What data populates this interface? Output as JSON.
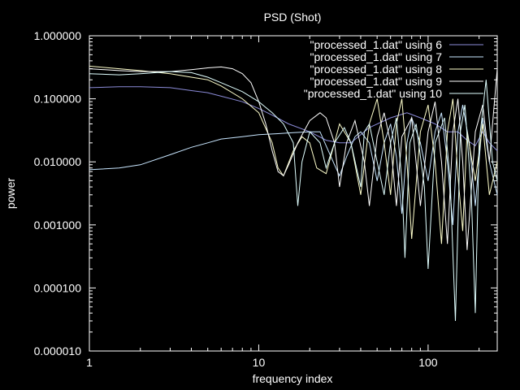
{
  "chart_data": {
    "type": "line",
    "title": "PSD (Shot)",
    "xlabel": "frequency index",
    "ylabel": "power",
    "x_scale": "log",
    "y_scale": "log",
    "xlim": [
      1,
      256
    ],
    "ylim": [
      1e-05,
      1
    ],
    "x_ticks": [
      {
        "value": 1,
        "label": "1"
      },
      {
        "value": 10,
        "label": "10"
      },
      {
        "value": 100,
        "label": "100"
      }
    ],
    "y_ticks": [
      {
        "value": 1e-05,
        "label": "0.000010"
      },
      {
        "value": 0.0001,
        "label": "0.000100"
      },
      {
        "value": 0.001,
        "label": "0.001000"
      },
      {
        "value": 0.01,
        "label": "0.010000"
      },
      {
        "value": 0.1,
        "label": "0.100000"
      },
      {
        "value": 1,
        "label": "1.000000"
      }
    ],
    "legend_position": "top-right",
    "series": [
      {
        "name": "\"processed_1.dat\" using 6",
        "color": "#8b8bd8",
        "points": [
          [
            1,
            0.15
          ],
          [
            1.5,
            0.155
          ],
          [
            2,
            0.155
          ],
          [
            3,
            0.15
          ],
          [
            4,
            0.135
          ],
          [
            5,
            0.125
          ],
          [
            6,
            0.11
          ],
          [
            8,
            0.09
          ],
          [
            10,
            0.07
          ],
          [
            12,
            0.055
          ],
          [
            15,
            0.04
          ],
          [
            20,
            0.03
          ],
          [
            25,
            0.022
          ],
          [
            30,
            0.02
          ],
          [
            35,
            0.02
          ],
          [
            45,
            0.035
          ],
          [
            60,
            0.05
          ],
          [
            75,
            0.06
          ],
          [
            90,
            0.05
          ],
          [
            110,
            0.04
          ],
          [
            130,
            0.03
          ],
          [
            150,
            0.03
          ],
          [
            170,
            0.022
          ],
          [
            190,
            0.018
          ],
          [
            210,
            0.03
          ],
          [
            230,
            0.02
          ],
          [
            256,
            0.015
          ]
        ]
      },
      {
        "name": "\"processed_1.dat\" using 7",
        "color": "#c8e6ff",
        "points": [
          [
            1,
            0.0075
          ],
          [
            1.5,
            0.008
          ],
          [
            2,
            0.009
          ],
          [
            3,
            0.013
          ],
          [
            4,
            0.017
          ],
          [
            5,
            0.02
          ],
          [
            6,
            0.023
          ],
          [
            8,
            0.025
          ],
          [
            10,
            0.027
          ],
          [
            13,
            0.028
          ],
          [
            16,
            0.029
          ],
          [
            20,
            0.03
          ],
          [
            23,
            0.03
          ],
          [
            25,
            0.018
          ],
          [
            28,
            0.009
          ],
          [
            30,
            0.006
          ],
          [
            33,
            0.012
          ],
          [
            37,
            0.025
          ],
          [
            40,
            0.03
          ],
          [
            45,
            0.02
          ],
          [
            50,
            0.005
          ],
          [
            55,
            0.02
          ],
          [
            60,
            0.04
          ],
          [
            65,
            0.012
          ],
          [
            70,
            0.0015
          ],
          [
            75,
            0.02
          ],
          [
            80,
            0.05
          ],
          [
            90,
            0.02
          ],
          [
            100,
            0.005
          ],
          [
            110,
            0.03
          ],
          [
            120,
            0.06
          ],
          [
            130,
            0.01
          ],
          [
            140,
            0.001
          ],
          [
            150,
            0.03
          ],
          [
            160,
            0.08
          ],
          [
            175,
            0.02
          ],
          [
            190,
            0.002
          ],
          [
            210,
            0.05
          ],
          [
            230,
            0.01
          ],
          [
            256,
            0.003
          ]
        ]
      },
      {
        "name": "\"processed_1.dat\" using 8",
        "color": "#ffffcc",
        "points": [
          [
            1,
            0.33
          ],
          [
            1.5,
            0.3
          ],
          [
            2,
            0.28
          ],
          [
            3,
            0.25
          ],
          [
            4,
            0.22
          ],
          [
            5,
            0.2
          ],
          [
            6,
            0.16
          ],
          [
            8,
            0.1
          ],
          [
            10,
            0.06
          ],
          [
            12,
            0.02
          ],
          [
            13,
            0.008
          ],
          [
            14,
            0.006
          ],
          [
            16,
            0.015
          ],
          [
            18,
            0.025
          ],
          [
            20,
            0.02
          ],
          [
            22,
            0.008
          ],
          [
            25,
            0.0065
          ],
          [
            28,
            0.02
          ],
          [
            30,
            0.04
          ],
          [
            35,
            0.02
          ],
          [
            40,
            0.003
          ],
          [
            45,
            0.04
          ],
          [
            50,
            0.1
          ],
          [
            55,
            0.02
          ],
          [
            60,
            0.003
          ],
          [
            65,
            0.04
          ],
          [
            70,
            0.1
          ],
          [
            75,
            0.01
          ],
          [
            80,
            0.0006
          ],
          [
            90,
            0.03
          ],
          [
            100,
            0.08
          ],
          [
            110,
            0.01
          ],
          [
            120,
            0.0005
          ],
          [
            130,
            0.03
          ],
          [
            140,
            0.1
          ],
          [
            150,
            0.006
          ],
          [
            160,
            0.0008
          ],
          [
            170,
            0.03
          ],
          [
            190,
            0.005
          ],
          [
            210,
            0.04
          ],
          [
            230,
            0.003
          ],
          [
            256,
            0.01
          ]
        ]
      },
      {
        "name": "\"processed_1.dat\" using 9",
        "color": "#ffffff",
        "points": [
          [
            1,
            0.3
          ],
          [
            1.5,
            0.28
          ],
          [
            2,
            0.27
          ],
          [
            3,
            0.27
          ],
          [
            4,
            0.29
          ],
          [
            5,
            0.31
          ],
          [
            6,
            0.32
          ],
          [
            7,
            0.3
          ],
          [
            8,
            0.25
          ],
          [
            9,
            0.18
          ],
          [
            10,
            0.09
          ],
          [
            11,
            0.04
          ],
          [
            12,
            0.015
          ],
          [
            13,
            0.007
          ],
          [
            14,
            0.006
          ],
          [
            15,
            0.009
          ],
          [
            17,
            0.02
          ],
          [
            20,
            0.045
          ],
          [
            23,
            0.06
          ],
          [
            25,
            0.05
          ],
          [
            28,
            0.02
          ],
          [
            30,
            0.004
          ],
          [
            33,
            0.02
          ],
          [
            37,
            0.045
          ],
          [
            42,
            0.01
          ],
          [
            45,
            0.002
          ],
          [
            50,
            0.025
          ],
          [
            55,
            0.06
          ],
          [
            60,
            0.02
          ],
          [
            65,
            0.002
          ],
          [
            70,
            0.025
          ],
          [
            80,
            0.05
          ],
          [
            90,
            0.002
          ],
          [
            100,
            0.03
          ],
          [
            110,
            0.09
          ],
          [
            120,
            0.01
          ],
          [
            130,
            0.0005
          ],
          [
            140,
            0.03
          ],
          [
            150,
            0.1
          ],
          [
            160,
            0.01
          ],
          [
            170,
            0.0004
          ],
          [
            190,
            0.03
          ],
          [
            210,
            0.08
          ],
          [
            230,
            0.01
          ],
          [
            256,
            0.3
          ]
        ]
      },
      {
        "name": "\"processed_1.dat\" using 10",
        "color": "#e0ffff",
        "points": [
          [
            1,
            0.25
          ],
          [
            1.5,
            0.24
          ],
          [
            2,
            0.25
          ],
          [
            3,
            0.27
          ],
          [
            4,
            0.26
          ],
          [
            5,
            0.22
          ],
          [
            6,
            0.18
          ],
          [
            8,
            0.13
          ],
          [
            10,
            0.09
          ],
          [
            12,
            0.06
          ],
          [
            14,
            0.04
          ],
          [
            16,
            0.02
          ],
          [
            17,
            0.002
          ],
          [
            18,
            0.01
          ],
          [
            20,
            0.03
          ],
          [
            23,
            0.02
          ],
          [
            25,
            0.008
          ],
          [
            28,
            0.02
          ],
          [
            32,
            0.035
          ],
          [
            35,
            0.02
          ],
          [
            40,
            0.004
          ],
          [
            42,
            0.03
          ],
          [
            45,
            0.04
          ],
          [
            50,
            0.01
          ],
          [
            55,
            0.003
          ],
          [
            60,
            0.02
          ],
          [
            65,
            0.05
          ],
          [
            70,
            0.005
          ],
          [
            73,
            0.0003
          ],
          [
            78,
            0.02
          ],
          [
            85,
            0.04
          ],
          [
            95,
            0.004
          ],
          [
            100,
            0.0002
          ],
          [
            110,
            0.02
          ],
          [
            125,
            0.05
          ],
          [
            135,
            0.005
          ],
          [
            145,
            3e-05
          ],
          [
            155,
            0.03
          ],
          [
            165,
            0.08
          ],
          [
            180,
            0.003
          ],
          [
            190,
            4e-05
          ],
          [
            200,
            0.02
          ],
          [
            220,
            0.2
          ],
          [
            240,
            0.01
          ],
          [
            256,
            0.005
          ]
        ]
      }
    ]
  }
}
